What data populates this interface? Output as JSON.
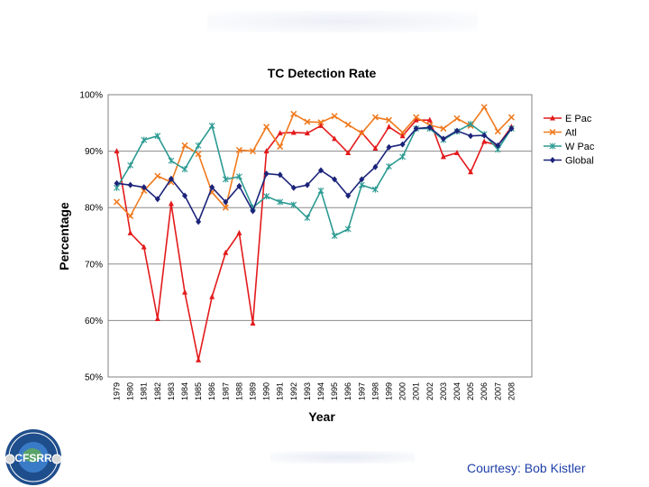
{
  "chart_data": {
    "type": "line",
    "title": "TC Detection Rate",
    "xlabel": "Year",
    "ylabel": "Percentage",
    "ylim": [
      50,
      100
    ],
    "y_ticks": [
      "50%",
      "60%",
      "70%",
      "80%",
      "90%",
      "100%"
    ],
    "y_tick_values": [
      50,
      60,
      70,
      80,
      90,
      100
    ],
    "grid": true,
    "legend_position": "right",
    "categories": [
      "1979",
      "1980",
      "1981",
      "1982",
      "1983",
      "1984",
      "1985",
      "1986",
      "1987",
      "1988",
      "1989",
      "1990",
      "1991",
      "1992",
      "1993",
      "1994",
      "1995",
      "1996",
      "1997",
      "1998",
      "1999",
      "2000",
      "2001",
      "2002",
      "2003",
      "2004",
      "2005",
      "2006",
      "2007",
      "2008"
    ],
    "series": [
      {
        "name": "E Pac",
        "color": "#e31a1c",
        "marker": "triangle",
        "values": [
          90.0,
          75.5,
          73.0,
          60.3,
          80.7,
          65.0,
          53.0,
          64.2,
          72.0,
          75.5,
          59.5,
          90.0,
          93.2,
          93.3,
          93.2,
          94.5,
          92.2,
          89.7,
          93.3,
          90.5,
          94.3,
          92.7,
          95.5,
          95.5,
          89.0,
          89.7,
          86.3,
          91.7,
          91.0,
          94.3
        ]
      },
      {
        "name": "Atl",
        "color": "#f07a1e",
        "marker": "x",
        "values": [
          81.0,
          78.5,
          83.0,
          85.6,
          84.5,
          91.0,
          89.5,
          82.7,
          80.0,
          90.2,
          90.0,
          94.3,
          90.8,
          96.6,
          95.2,
          95.1,
          96.2,
          94.7,
          93.2,
          96.0,
          95.5,
          93.3,
          96.0,
          94.6,
          94.0,
          95.8,
          94.5,
          97.8,
          93.5,
          96.0
        ]
      },
      {
        "name": "W Pac",
        "color": "#2b9a92",
        "marker": "star",
        "values": [
          83.5,
          87.5,
          92.0,
          92.7,
          88.3,
          86.8,
          91.0,
          94.5,
          85.0,
          85.5,
          80.0,
          82.0,
          81.0,
          80.5,
          78.2,
          83.0,
          75.0,
          76.2,
          84.0,
          83.2,
          87.3,
          89.0,
          94.0,
          94.0,
          92.0,
          93.5,
          94.8,
          93.0,
          90.3,
          94.0
        ]
      },
      {
        "name": "Global",
        "color": "#1b237a",
        "marker": "diamond",
        "values": [
          84.3,
          84.0,
          83.6,
          81.5,
          85.1,
          82.1,
          77.5,
          83.6,
          81.0,
          83.8,
          79.4,
          86.0,
          85.8,
          83.5,
          84.0,
          86.6,
          85.0,
          82.1,
          85.0,
          87.2,
          90.7,
          91.2,
          94.0,
          94.2,
          92.2,
          93.6,
          92.7,
          92.8,
          91.0,
          94.0
        ]
      }
    ]
  },
  "logo": {
    "text": "CFSRR"
  },
  "footer": {
    "courtesy": "Courtesy: Bob Kistler"
  }
}
